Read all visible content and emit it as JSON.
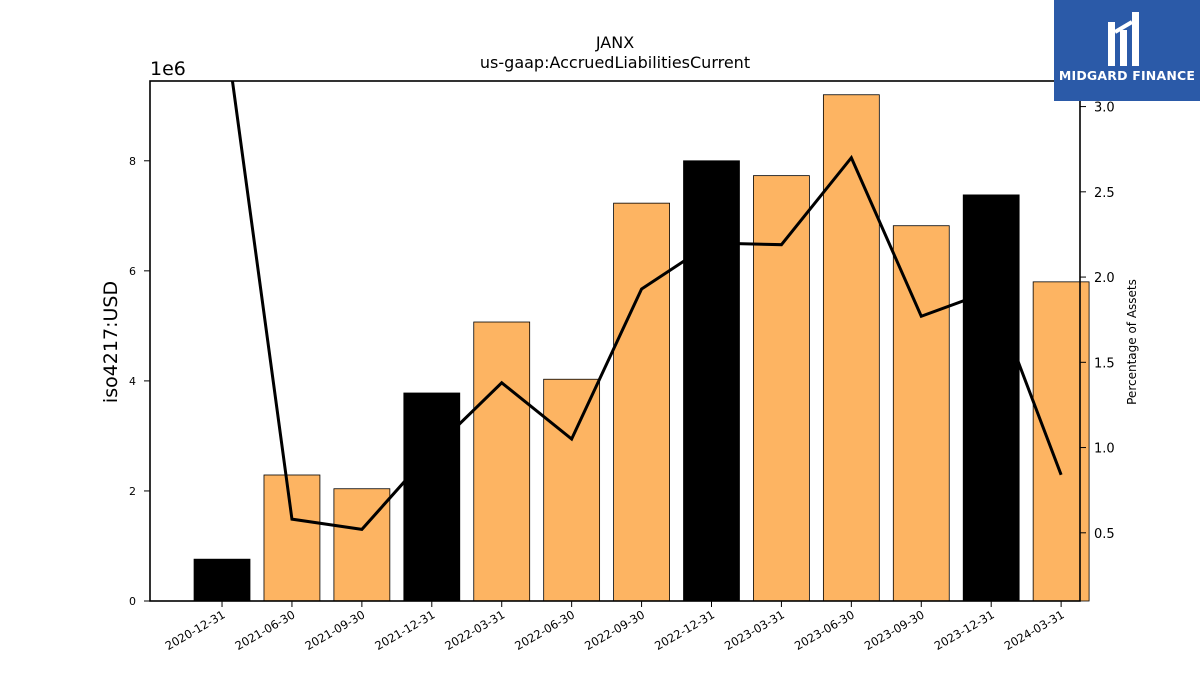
{
  "chart_data": {
    "type": "bar",
    "title": "JANX",
    "subtitle": "us-gaap:AccruedLiabilitiesCurrent",
    "ylabel": "iso4217:USD",
    "y2label": "Percentage of Assets",
    "y_offset_label": "1e6",
    "ylim": [
      0,
      9.45
    ],
    "y2lim": [
      0.1,
      3.15
    ],
    "yticks": [
      0,
      2,
      4,
      6,
      8
    ],
    "y2ticks": [
      "0.5",
      "1.0",
      "1.5",
      "2.0",
      "2.5",
      "3.0"
    ],
    "categories": [
      "2020-12-31",
      "2021-06-30",
      "2021-09-30",
      "2021-12-31",
      "2022-03-31",
      "2022-06-30",
      "2022-09-30",
      "2022-12-31",
      "2023-03-31",
      "2023-06-30",
      "2023-09-30",
      "2023-12-31",
      "2024-03-31"
    ],
    "series": [
      {
        "type": "bar",
        "values": [
          0.76,
          2.29,
          2.04,
          3.78,
          5.07,
          4.03,
          7.23,
          8.0,
          7.73,
          9.2,
          6.82,
          7.38,
          5.8
        ],
        "colors": [
          "#000000",
          "#fdb462",
          "#fdb462",
          "#000000",
          "#fdb462",
          "#fdb462",
          "#fdb462",
          "#000000",
          "#fdb462",
          "#fdb462",
          "#fdb462",
          "#000000",
          "#fdb462"
        ]
      },
      {
        "type": "line",
        "axis": "right",
        "color": "#000000",
        "values": [
          3.6,
          0.58,
          0.52,
          0.98,
          1.38,
          1.05,
          1.93,
          2.2,
          2.19,
          2.7,
          1.77,
          1.92,
          0.84
        ]
      }
    ],
    "grid": false
  },
  "logo": {
    "text": "MIDGARD FINANCE",
    "bg_color": "#2b5aa8"
  }
}
